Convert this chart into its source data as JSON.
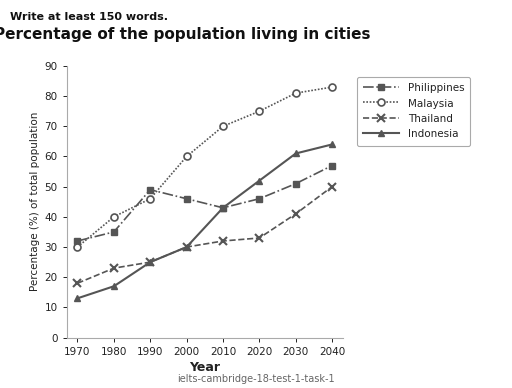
{
  "title": "Percentage of the population living in cities",
  "xlabel": "Year",
  "ylabel": "Percentage (%) of total population",
  "subtitle": "Write at least 150 words.",
  "caption": "ielts-cambridge-18-test-1-task-1",
  "years": [
    1970,
    1980,
    1990,
    2000,
    2010,
    2020,
    2030,
    2040
  ],
  "Philippines": [
    32,
    35,
    49,
    46,
    43,
    46,
    51,
    57
  ],
  "Malaysia": [
    30,
    40,
    46,
    60,
    70,
    75,
    81,
    83
  ],
  "Thailand": [
    18,
    23,
    25,
    30,
    32,
    33,
    41,
    50
  ],
  "Indonesia": [
    13,
    17,
    25,
    30,
    43,
    52,
    61,
    64
  ],
  "ylim": [
    0,
    90
  ],
  "yticks": [
    0,
    10,
    20,
    30,
    40,
    50,
    60,
    70,
    80,
    90
  ],
  "color": "#555555",
  "line_color": "#555555",
  "bg_color": "#ffffff"
}
